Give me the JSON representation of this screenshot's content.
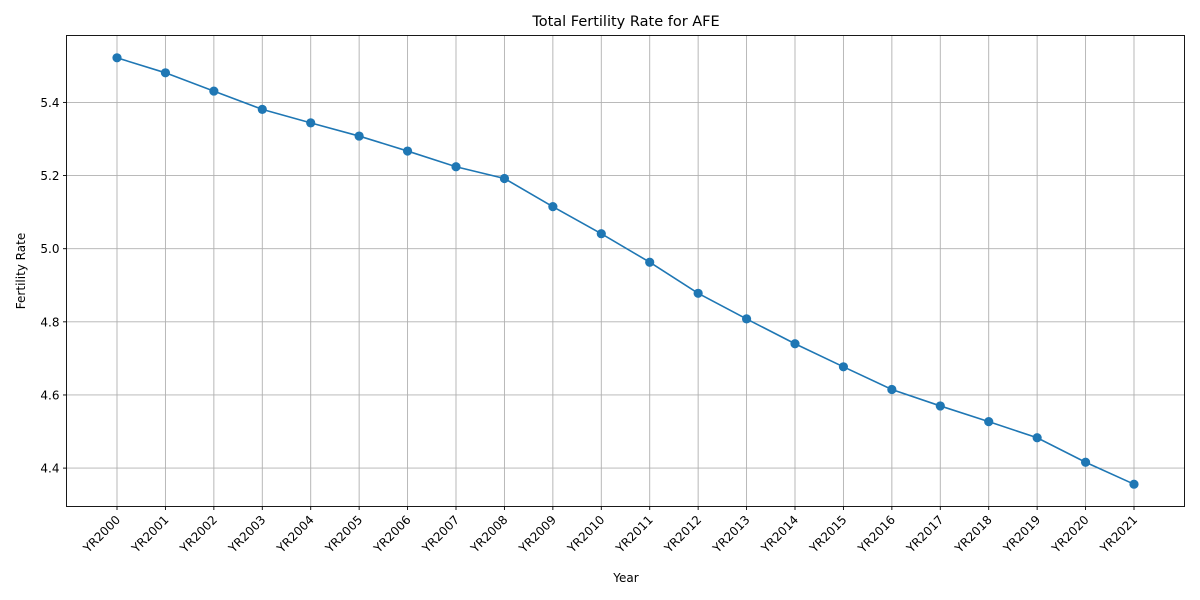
{
  "chart_data": {
    "type": "line",
    "title": "Total Fertility Rate for AFE",
    "xlabel": "Year",
    "ylabel": "Fertility Rate",
    "categories": [
      "YR2000",
      "YR2001",
      "YR2002",
      "YR2003",
      "YR2004",
      "YR2005",
      "YR2006",
      "YR2007",
      "YR2008",
      "YR2009",
      "YR2010",
      "YR2011",
      "YR2012",
      "YR2013",
      "YR2014",
      "YR2015",
      "YR2016",
      "YR2017",
      "YR2018",
      "YR2019",
      "YR2020",
      "YR2021"
    ],
    "series": [
      {
        "values": [
          5.522,
          5.481,
          5.431,
          5.381,
          5.344,
          5.308,
          5.267,
          5.224,
          5.192,
          5.115,
          5.041,
          4.963,
          4.878,
          4.808,
          4.74,
          4.677,
          4.615,
          4.57,
          4.527,
          4.483,
          4.416,
          4.356
        ],
        "color": "#1f77b4"
      }
    ],
    "ylim": [
      4.295,
      5.583
    ],
    "yticks": [
      4.4,
      4.6,
      4.8,
      5.0,
      5.2,
      5.4
    ],
    "grid": true,
    "marker": "circle"
  }
}
